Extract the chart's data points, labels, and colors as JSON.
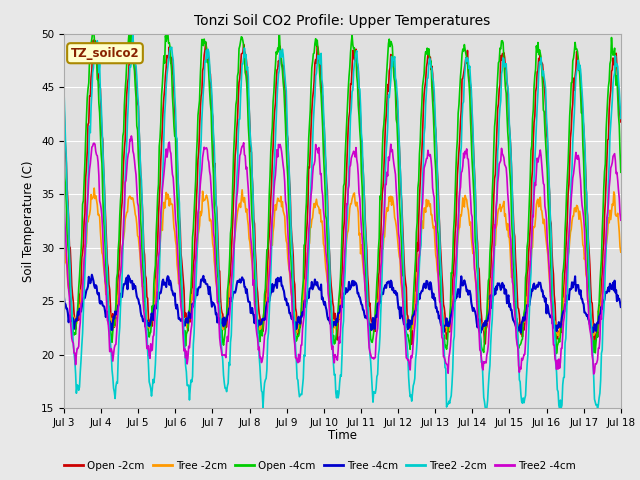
{
  "title": "Tonzi Soil CO2 Profile: Upper Temperatures",
  "ylabel": "Soil Temperature (C)",
  "xlabel": "Time",
  "ylim": [
    15,
    50
  ],
  "yticks": [
    15,
    20,
    25,
    30,
    35,
    40,
    45,
    50
  ],
  "xtick_labels": [
    "Jul 3",
    "Jul 4",
    "Jul 5",
    "Jul 6",
    "Jul 7",
    "Jul 8",
    "Jul 9",
    "Jul 10",
    "Jul 11",
    "Jul 12",
    "Jul 13",
    "Jul 14",
    "Jul 15",
    "Jul 16",
    "Jul 17",
    "Jul 18"
  ],
  "legend_box_label": "TZ_soilco2",
  "fig_bg_color": "#e8e8e8",
  "plot_bg_color": "#e0e0e0",
  "grid_color": "#ffffff",
  "series": [
    {
      "label": "Open -2cm",
      "color": "#cc0000",
      "lw": 1.2
    },
    {
      "label": "Tree -2cm",
      "color": "#ff9900",
      "lw": 1.2
    },
    {
      "label": "Open -4cm",
      "color": "#00cc00",
      "lw": 1.2
    },
    {
      "label": "Tree -4cm",
      "color": "#0000cc",
      "lw": 1.5
    },
    {
      "label": "Tree2 -2cm",
      "color": "#00cccc",
      "lw": 1.2
    },
    {
      "label": "Tree2 -4cm",
      "color": "#cc00cc",
      "lw": 1.2
    }
  ]
}
